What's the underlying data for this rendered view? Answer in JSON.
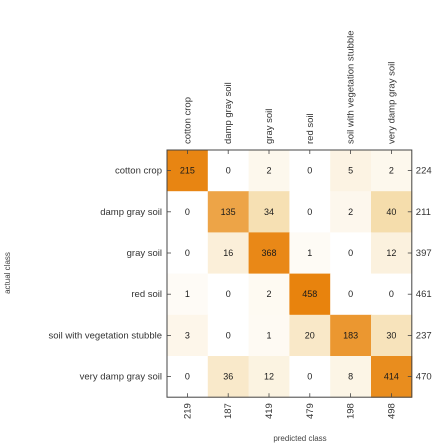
{
  "chart_data": {
    "type": "heatmap",
    "title": "",
    "xlabel": "predicted class",
    "ylabel": "actual class",
    "classes": [
      "cotton crop",
      "damp gray soil",
      "gray soil",
      "red soil",
      "soil with vegetation stubble",
      "very damp gray soil"
    ],
    "matrix": [
      [
        215,
        0,
        2,
        0,
        5,
        2
      ],
      [
        0,
        135,
        34,
        0,
        2,
        40
      ],
      [
        0,
        16,
        368,
        1,
        0,
        12
      ],
      [
        1,
        0,
        2,
        458,
        0,
        0
      ],
      [
        3,
        0,
        1,
        20,
        183,
        30
      ],
      [
        0,
        36,
        12,
        0,
        8,
        414
      ]
    ],
    "row_totals": [
      224,
      211,
      397,
      461,
      237,
      470
    ],
    "column_totals": [
      219,
      187,
      419,
      479,
      198,
      498
    ],
    "colors": {
      "low": "#ffffff",
      "high": "#e8820c",
      "frame": "#444444"
    }
  }
}
